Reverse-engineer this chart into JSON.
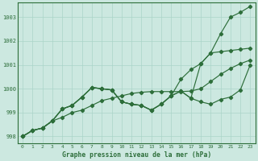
{
  "title": "Graphe pression niveau de la mer (hPa)",
  "background_color": "#cce8e0",
  "grid_color": "#aad4c8",
  "line_color": "#2d6e3a",
  "xlim": [
    -0.5,
    23.5
  ],
  "ylim": [
    997.7,
    1003.6
  ],
  "yticks": [
    998,
    999,
    1000,
    1001,
    1002,
    1003
  ],
  "xticks": [
    0,
    1,
    2,
    3,
    4,
    5,
    6,
    7,
    8,
    9,
    10,
    11,
    12,
    13,
    14,
    15,
    16,
    17,
    18,
    19,
    20,
    21,
    22,
    23
  ],
  "series1": [
    998.0,
    998.25,
    998.35,
    998.65,
    999.15,
    999.3,
    999.65,
    1000.05,
    1000.0,
    999.95,
    999.45,
    999.35,
    999.3,
    999.1,
    999.35,
    999.7,
    999.9,
    999.6,
    999.45,
    999.35,
    999.55,
    999.65,
    999.95,
    1001.0
  ],
  "series2": [
    998.0,
    998.25,
    998.35,
    998.65,
    999.15,
    999.3,
    999.65,
    1000.05,
    1000.0,
    999.95,
    999.45,
    999.35,
    999.3,
    999.1,
    999.35,
    999.7,
    999.9,
    999.6,
    1001.05,
    1001.5,
    1002.3,
    1003.0,
    1003.2,
    1003.45
  ],
  "series3": [
    998.0,
    998.25,
    998.35,
    998.65,
    999.15,
    999.3,
    999.65,
    1000.05,
    1000.0,
    999.95,
    999.45,
    999.35,
    999.3,
    999.1,
    999.35,
    999.7,
    1000.4,
    1000.8,
    1001.05,
    1001.5,
    1001.55,
    1001.6,
    1001.65,
    1001.7
  ],
  "series4": [
    998.0,
    998.25,
    998.35,
    998.65,
    998.8,
    999.0,
    999.1,
    999.3,
    999.5,
    999.6,
    999.7,
    999.8,
    999.85,
    999.88,
    999.88,
    999.88,
    999.88,
    999.9,
    1000.0,
    1000.3,
    1000.6,
    1000.85,
    1001.05,
    1001.2
  ]
}
